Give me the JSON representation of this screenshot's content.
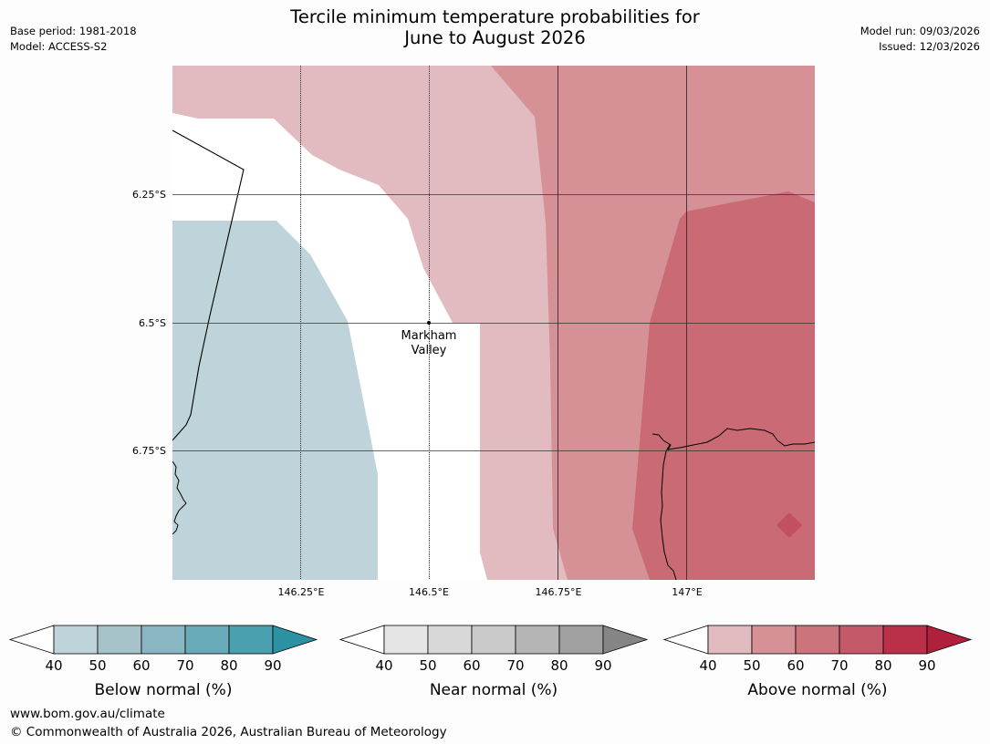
{
  "header": {
    "title_line1": "Tercile minimum temperature probabilities for",
    "title_line2": "June to August 2026",
    "base_period": "Base period: 1981-2018",
    "model": "Model: ACCESS-S2",
    "model_run": "Model run: 09/03/2026",
    "issued": "Issued: 12/03/2026"
  },
  "map": {
    "lat_labels": [
      "6.25°S",
      "6.5°S",
      "6.75°S"
    ],
    "lon_labels": [
      "146.25°E",
      "146.5°E",
      "146.75°E",
      "147°E"
    ],
    "place_label_line1": "Markham",
    "place_label_line2": "Valley",
    "colors": {
      "above_40_50": "#e2bbc0",
      "above_50_60": "#d69197",
      "above_60_70": "#c96a75",
      "above_70_80": "#c2505f",
      "below_40_50": "#bfd4da"
    }
  },
  "colorbars": [
    {
      "label": "Below normal (%)",
      "ticks": [
        "40",
        "50",
        "60",
        "70",
        "80",
        "90"
      ],
      "colors": [
        "#bfd4da",
        "#a6c3ca",
        "#88b6c2",
        "#6aabb9",
        "#4aa0ae",
        "#2b92a3"
      ]
    },
    {
      "label": "Near normal (%)",
      "ticks": [
        "40",
        "50",
        "60",
        "70",
        "80",
        "90"
      ],
      "colors": [
        "#e5e5e5",
        "#d8d8d8",
        "#cacaca",
        "#b5b5b5",
        "#a0a0a0",
        "#858585"
      ]
    },
    {
      "label": "Above normal (%)",
      "ticks": [
        "40",
        "50",
        "60",
        "70",
        "80",
        "90"
      ],
      "colors": [
        "#e2bbc0",
        "#d69197",
        "#cc747c",
        "#c4596a",
        "#bb3048",
        "#b01f3c"
      ]
    }
  ],
  "footer": {
    "url": "www.bom.gov.au/climate",
    "copyright": "© Commonwealth of Australia 2026, Australian Bureau of Meteorology"
  }
}
